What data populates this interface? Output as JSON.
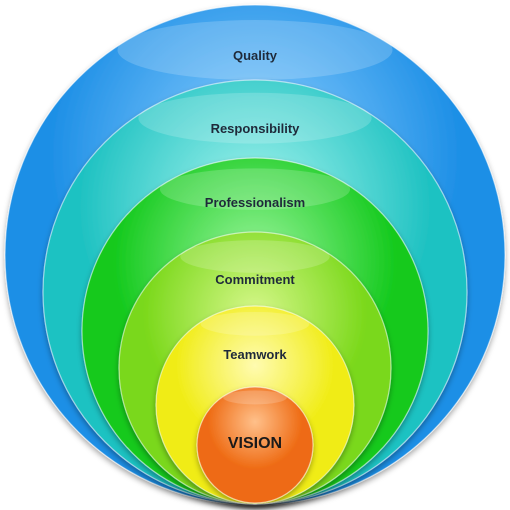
{
  "diagram": {
    "layers": [
      {
        "label": "Quality",
        "color": "#1d8fe6",
        "highlight": "#8fd0ff"
      },
      {
        "label": "Responsibility",
        "color": "#1fc2c2",
        "highlight": "#a8f5ee"
      },
      {
        "label": "Professionalism",
        "color": "#13c91c",
        "highlight": "#9af59b"
      },
      {
        "label": "Commitment",
        "color": "#7ad81a",
        "highlight": "#d6f78a"
      },
      {
        "label": "Teamwork",
        "color": "#f0ec12",
        "highlight": "#fffbb0"
      },
      {
        "label": "VISION",
        "color": "#ee6a12",
        "highlight": "#ffc08a"
      }
    ]
  }
}
